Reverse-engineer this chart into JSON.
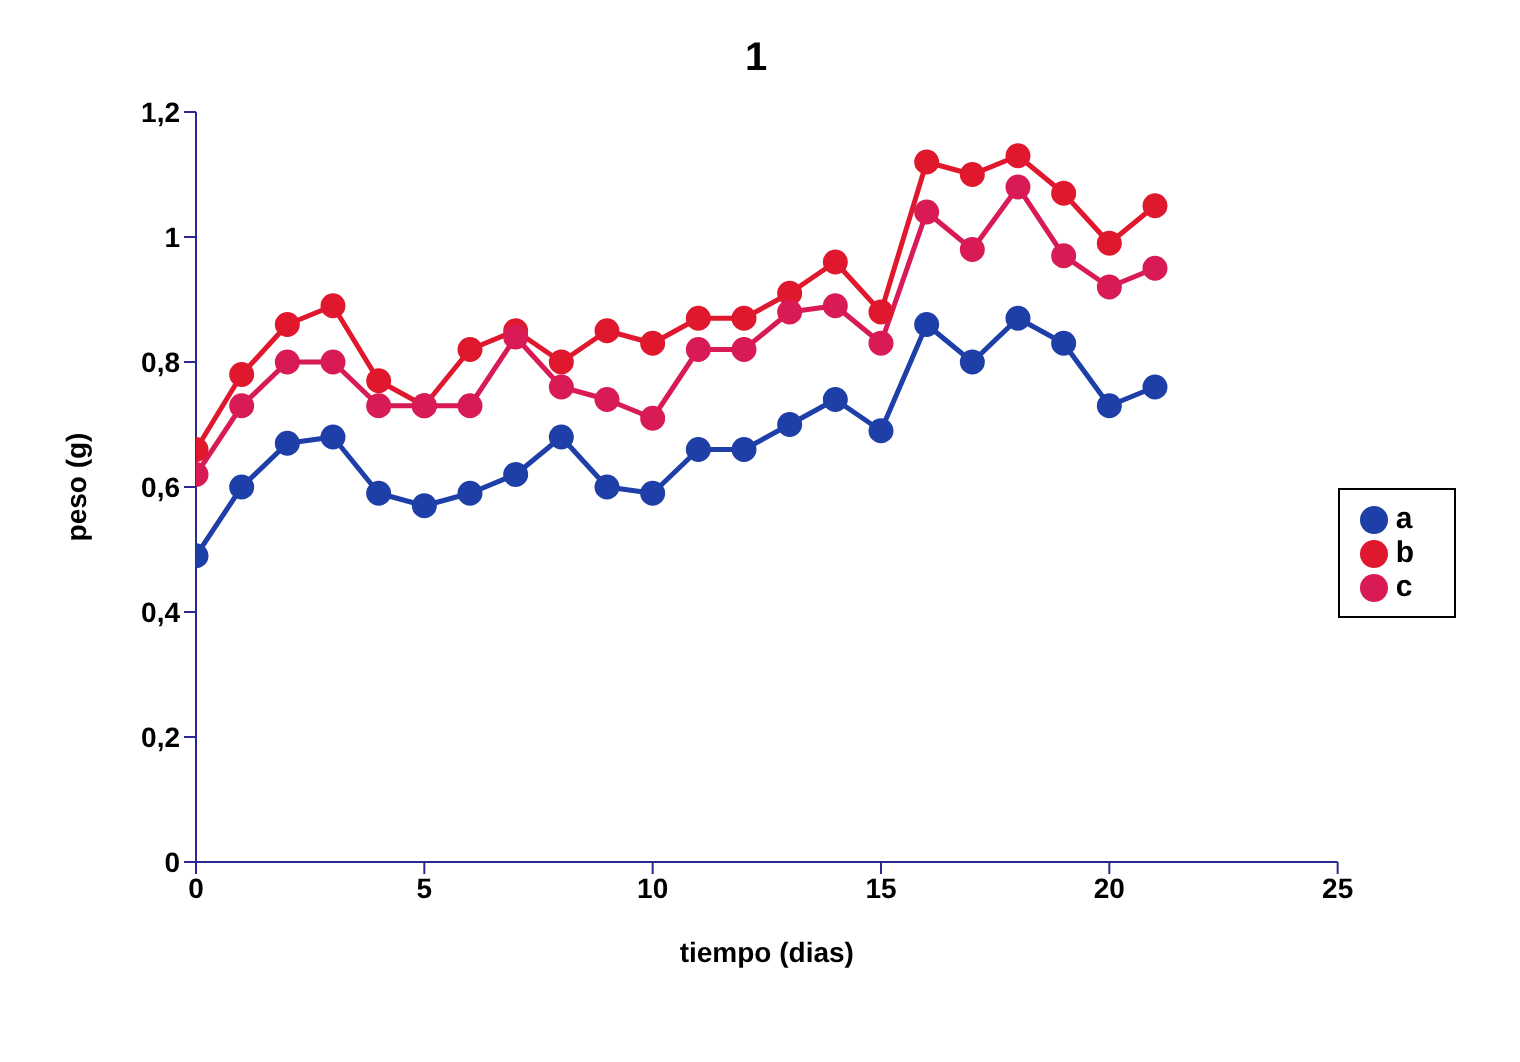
{
  "chart_data": {
    "type": "line",
    "title": "1",
    "xlabel": "tiempo (dias)",
    "ylabel": "peso (g)",
    "x": [
      0,
      1,
      2,
      3,
      4,
      5,
      6,
      7,
      8,
      9,
      10,
      11,
      12,
      13,
      14,
      15,
      16,
      17,
      18,
      19,
      20,
      21
    ],
    "series": [
      {
        "name": "a",
        "color": "#1f3fa8",
        "values": [
          0.49,
          0.6,
          0.67,
          0.68,
          0.59,
          0.57,
          0.59,
          0.62,
          0.68,
          0.6,
          0.59,
          0.66,
          0.66,
          0.7,
          0.74,
          0.69,
          0.86,
          0.8,
          0.87,
          0.83,
          0.73,
          0.76
        ]
      },
      {
        "name": "b",
        "color": "#e0182e",
        "values": [
          0.66,
          0.78,
          0.86,
          0.89,
          0.77,
          0.73,
          0.82,
          0.85,
          0.8,
          0.85,
          0.83,
          0.87,
          0.87,
          0.91,
          0.96,
          0.88,
          1.12,
          1.1,
          1.13,
          1.07,
          0.99,
          1.05
        ]
      },
      {
        "name": "c",
        "color": "#d81b55",
        "values": [
          0.62,
          0.73,
          0.8,
          0.8,
          0.73,
          0.73,
          0.73,
          0.84,
          0.76,
          0.74,
          0.71,
          0.82,
          0.82,
          0.88,
          0.89,
          0.83,
          1.04,
          0.98,
          1.08,
          0.97,
          0.92,
          0.95
        ]
      }
    ],
    "xlim": [
      0,
      25
    ],
    "xticks": [
      0,
      5,
      10,
      15,
      20,
      25
    ],
    "ylim": [
      0,
      1.2
    ],
    "yticks": [
      0,
      {
        "value": 0.2,
        "label": "0,2"
      },
      {
        "value": 0.4,
        "label": "0,4"
      },
      {
        "value": 0.6,
        "label": "0,6"
      },
      {
        "value": 0.8,
        "label": "0,8"
      },
      1,
      {
        "value": 1.2,
        "label": "1,2"
      }
    ],
    "grid": false,
    "legend": "right",
    "marker": "circle",
    "line_style": "solid"
  }
}
